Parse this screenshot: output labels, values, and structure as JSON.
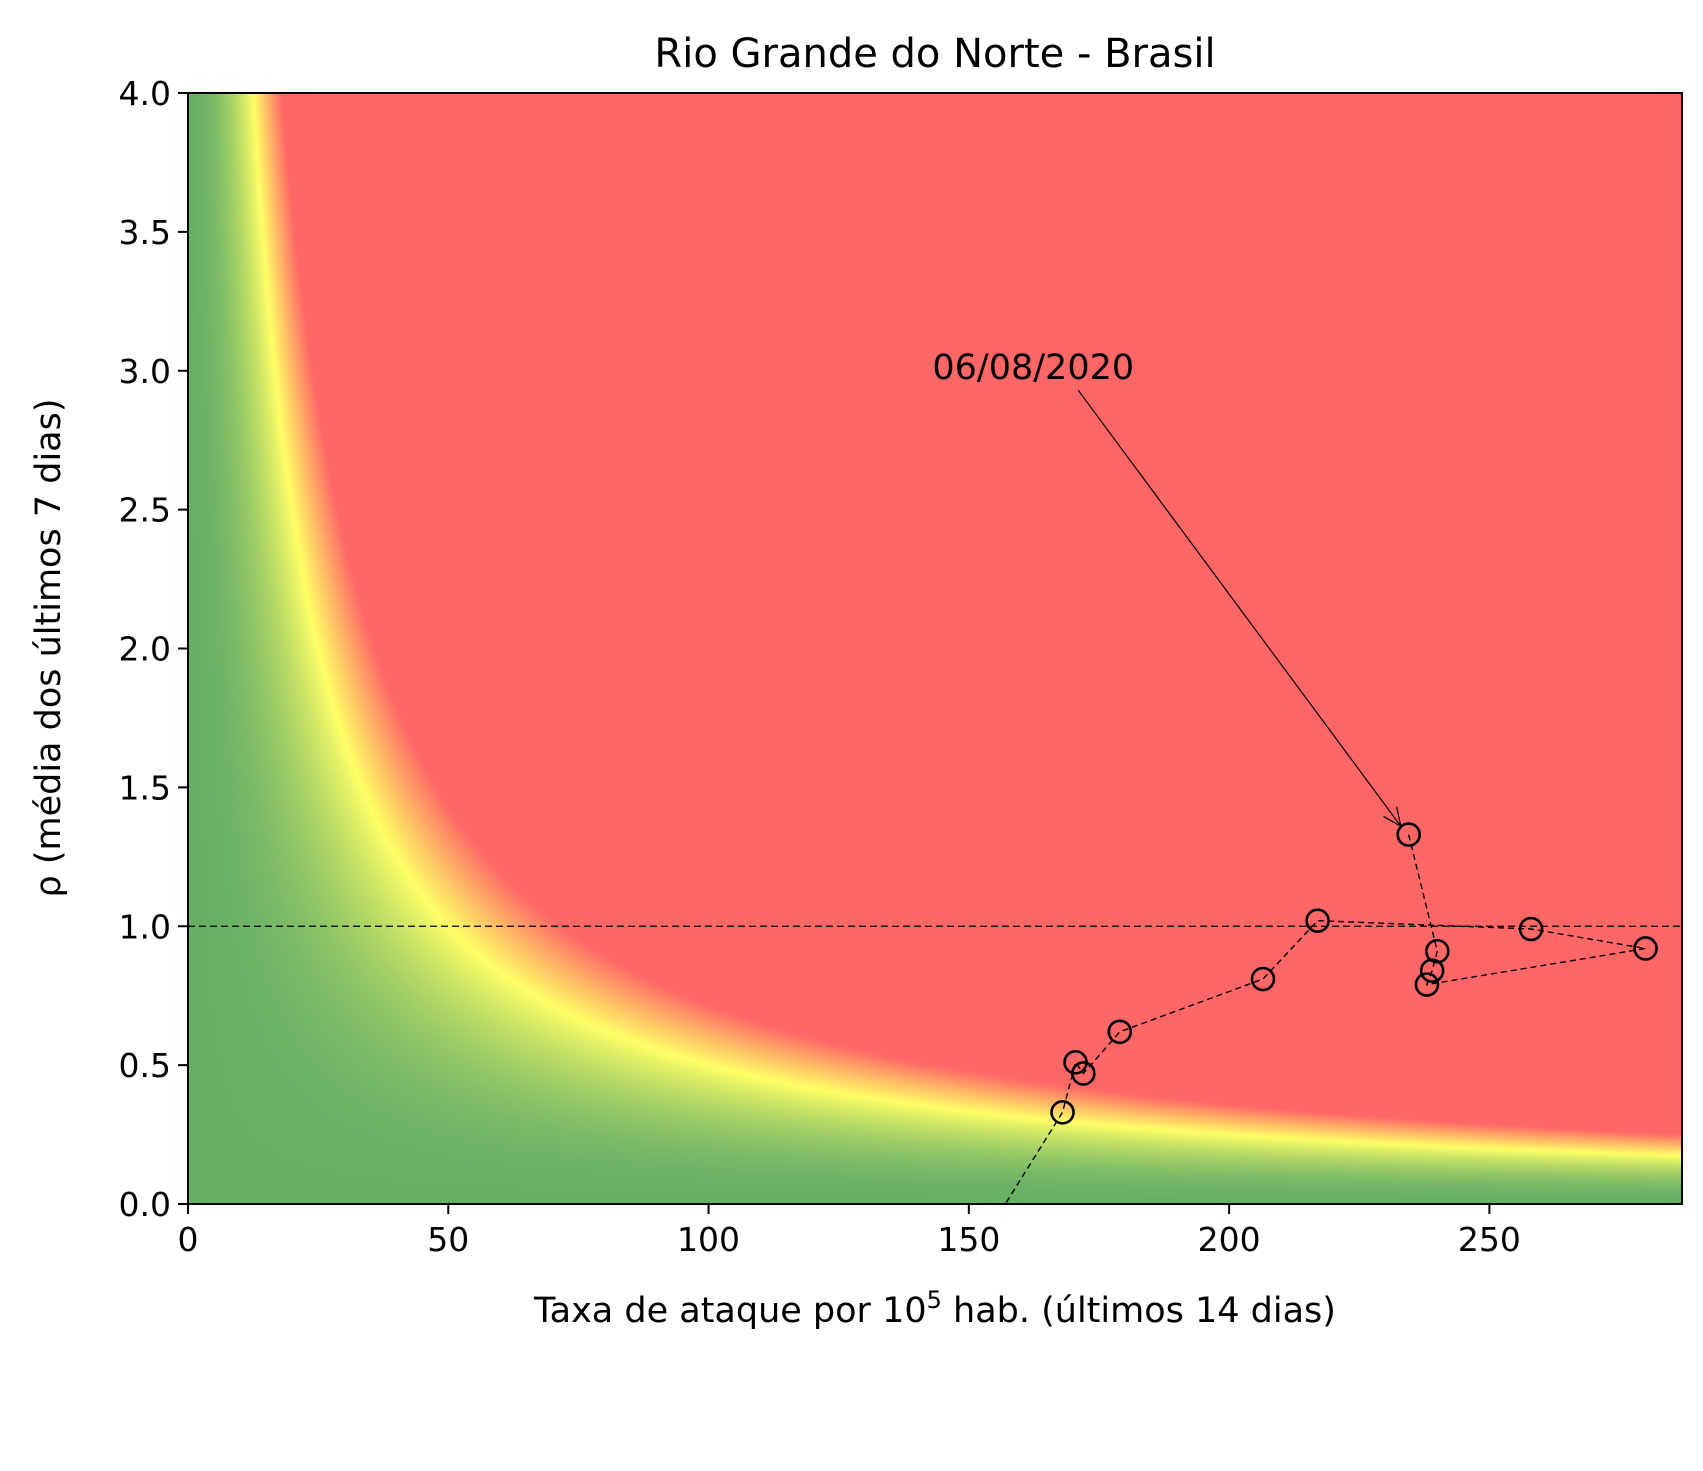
{
  "chart_data": {
    "type": "scatter",
    "title": "Rio Grande do Norte - Brasil",
    "xlabel_main": "Taxa de ataque por 10",
    "xlabel_sup": "5",
    "xlabel_rest": " hab. (últimos 14 dias)",
    "ylabel": "ρ (média dos últimos 7 dias)",
    "xlim": [
      0,
      287
    ],
    "ylim": [
      0,
      4.0
    ],
    "x_ticks": [
      0,
      50,
      100,
      150,
      200,
      250
    ],
    "x_tick_labels": [
      "0",
      "50",
      "100",
      "150",
      "200",
      "250"
    ],
    "y_ticks": [
      0,
      0.5,
      1.0,
      1.5,
      2.0,
      2.5,
      3.0,
      3.5,
      4.0
    ],
    "y_tick_labels": [
      "0.0",
      "0.5",
      "1.0",
      "1.5",
      "2.0",
      "2.5",
      "3.0",
      "3.5",
      "4.0"
    ],
    "reference_line_y": 1.0,
    "risk_background": {
      "kind": "hyperbolic gradient of x*y",
      "colors": {
        "low": "#66b066",
        "mid": "#ffff66",
        "high": "#ff6666"
      },
      "x_times_y_mid": 50,
      "x_times_y_high": 72
    },
    "series": [
      {
        "points": [
          {
            "x": 234.5,
            "y": 1.33
          },
          {
            "x": 240.0,
            "y": 0.91
          },
          {
            "x": 239.0,
            "y": 0.84
          },
          {
            "x": 238.0,
            "y": 0.79
          },
          {
            "x": 280.0,
            "y": 0.92
          },
          {
            "x": 258.0,
            "y": 0.99
          },
          {
            "x": 217.0,
            "y": 1.02
          },
          {
            "x": 206.5,
            "y": 0.81
          },
          {
            "x": 179.0,
            "y": 0.62
          },
          {
            "x": 172.0,
            "y": 0.47
          },
          {
            "x": 170.5,
            "y": 0.51
          },
          {
            "x": 168.0,
            "y": 0.33
          },
          {
            "x": 157.0,
            "y": 0.0
          }
        ],
        "marker_points": 12
      }
    ],
    "annotation": {
      "text": "06/08/2020",
      "text_x": 143.0,
      "text_y": 2.97,
      "arrow_from": {
        "x": 171.0,
        "y": 2.93
      },
      "arrow_to": {
        "x": 233.0,
        "y": 1.36
      }
    }
  }
}
